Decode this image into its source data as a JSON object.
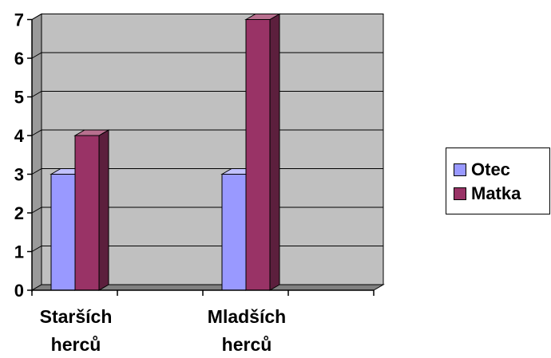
{
  "chart_data": {
    "type": "bar",
    "categories": [
      "Starších herců",
      "Mladších herců"
    ],
    "category_lines": [
      [
        "Starších",
        "herců"
      ],
      [
        "Mladších",
        "herců"
      ]
    ],
    "series": [
      {
        "name": "Otec",
        "values": [
          3,
          3
        ],
        "color": "#9999ff",
        "side_color": "#5c5c99",
        "top_color": "#c2c2ff"
      },
      {
        "name": "Matka",
        "values": [
          4,
          7
        ],
        "color": "#993366",
        "side_color": "#5c1f3d",
        "top_color": "#b8708f"
      }
    ],
    "ylim": [
      0,
      7
    ],
    "y_ticks": [
      "0",
      "1",
      "2",
      "3",
      "4",
      "5",
      "6",
      "7"
    ],
    "grid": true,
    "wall_color": "#c0c0c0",
    "legend_position": "right"
  }
}
